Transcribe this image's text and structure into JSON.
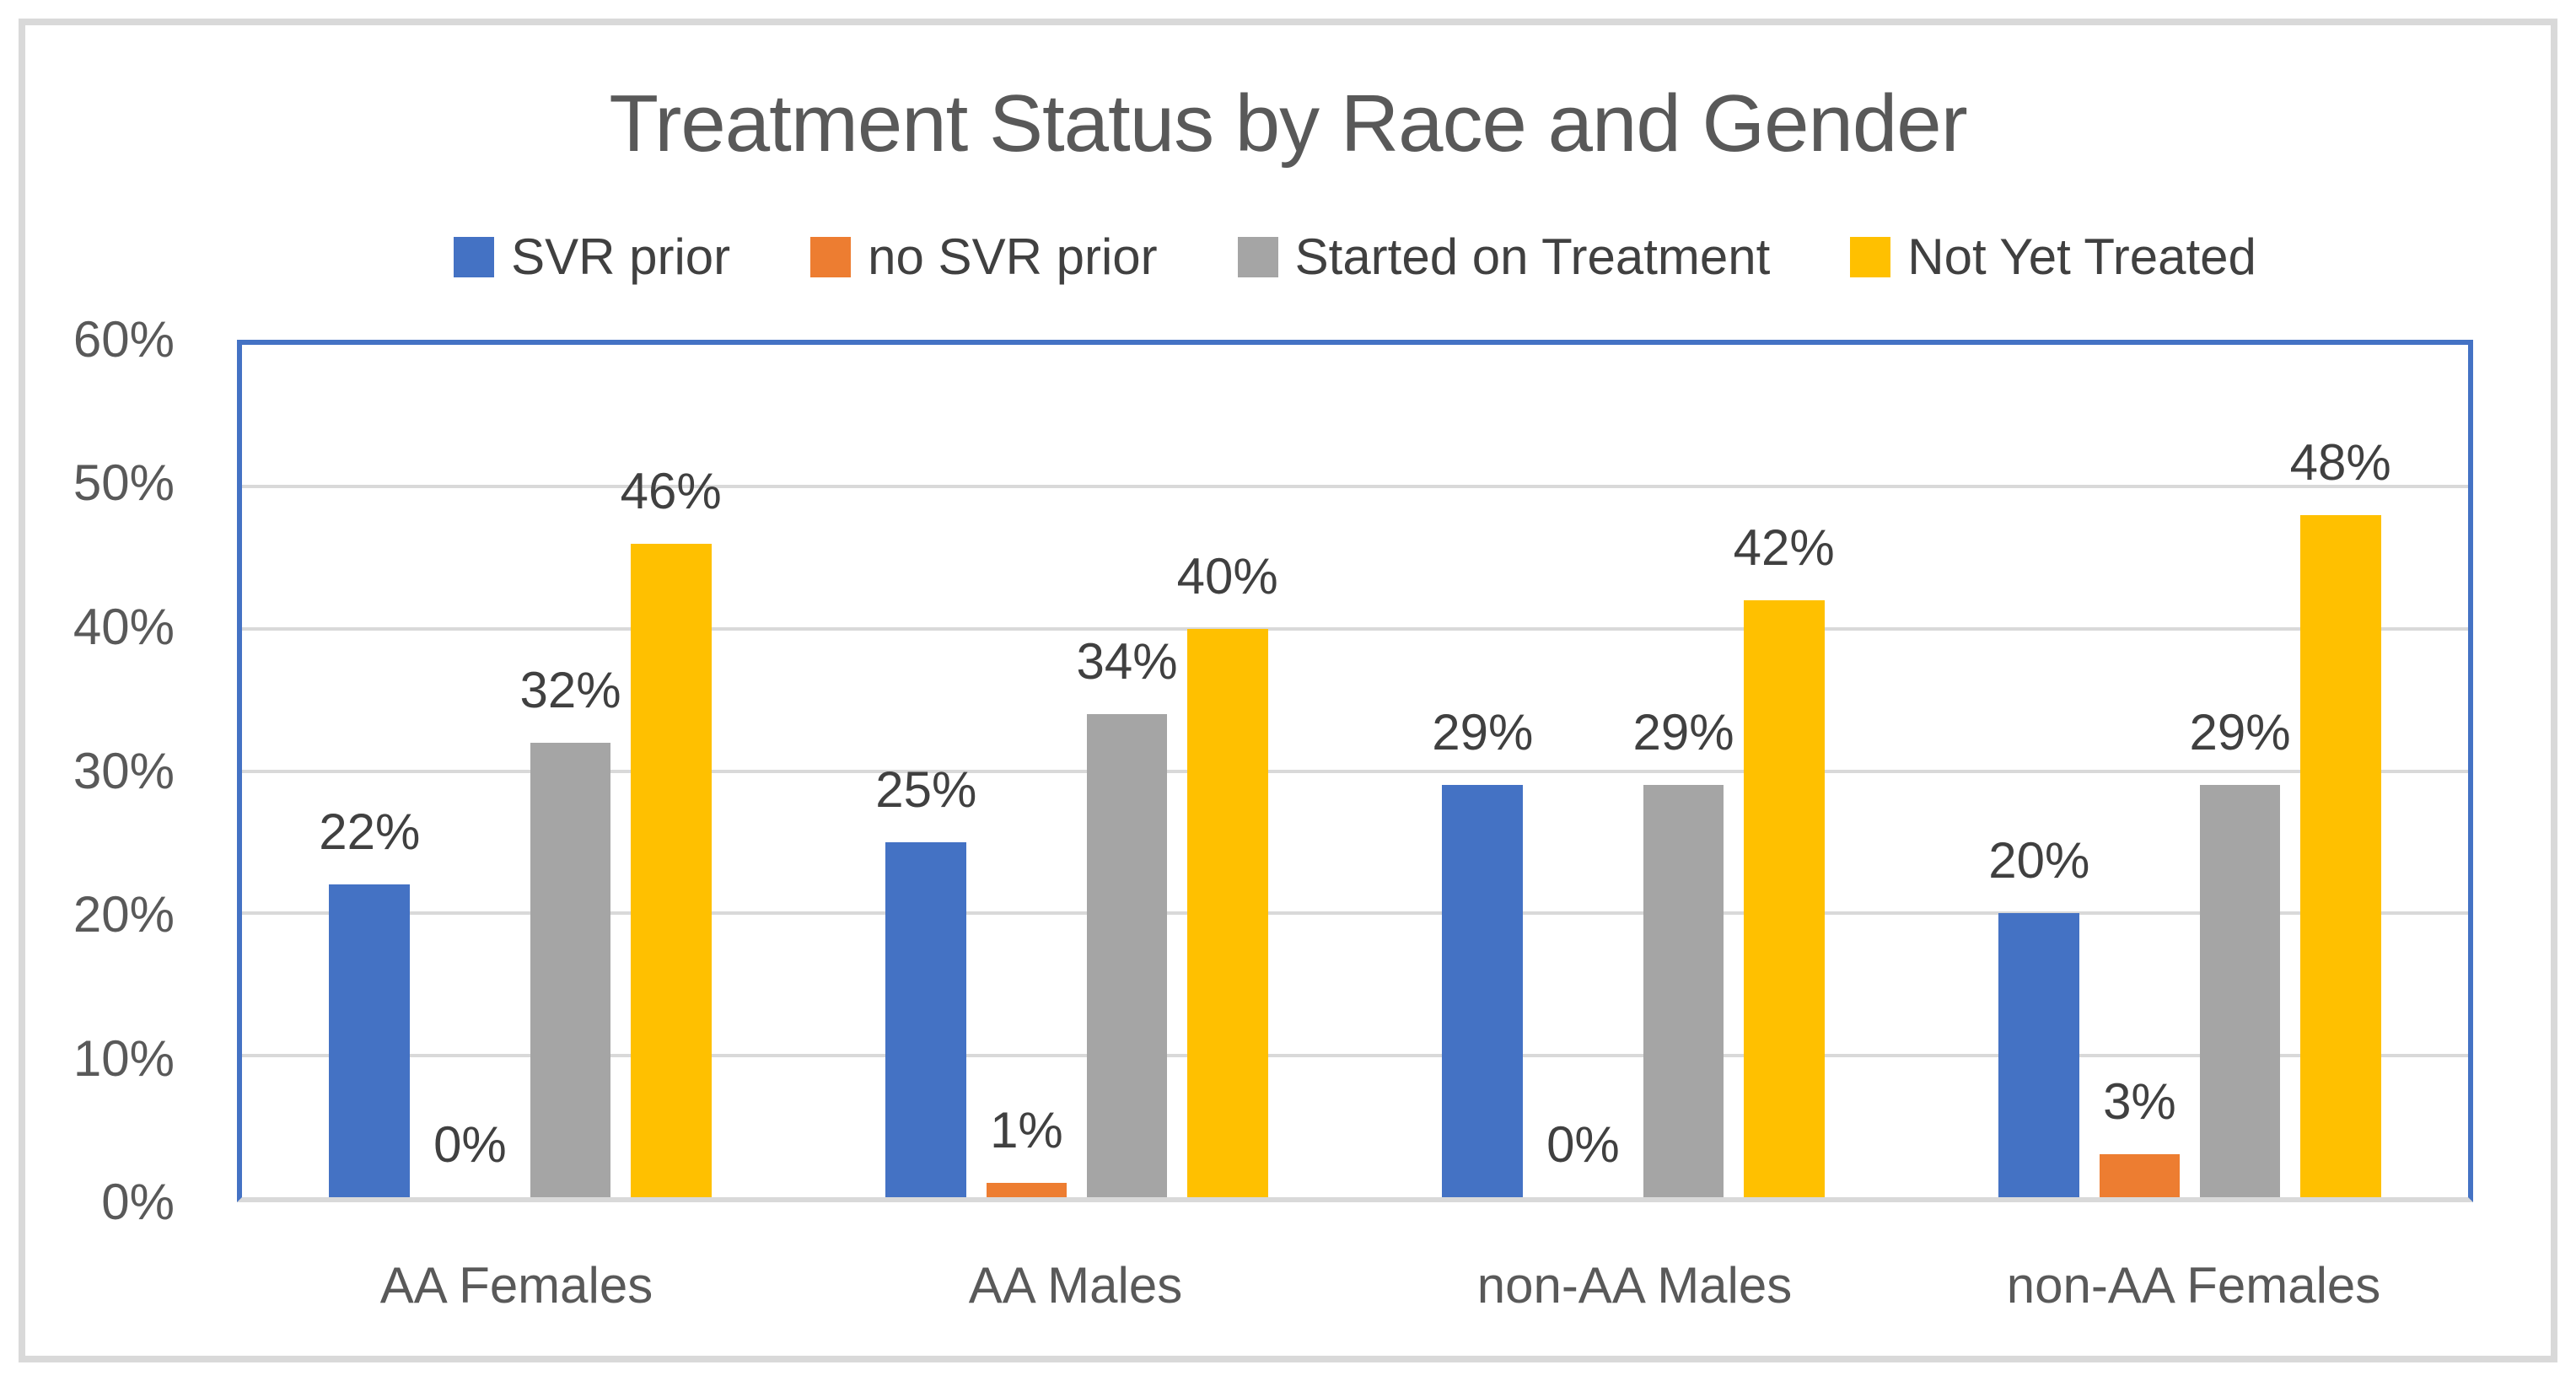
{
  "title": "Treatment Status by Race and Gender",
  "chart_data": {
    "type": "bar",
    "categories": [
      "AA Females",
      "AA Males",
      "non-AA Males",
      "non-AA Females"
    ],
    "series": [
      {
        "name": "SVR prior",
        "color": "#4472C4",
        "values": [
          22,
          25,
          29,
          20
        ]
      },
      {
        "name": "no SVR prior",
        "color": "#ED7D31",
        "values": [
          0,
          1,
          0,
          3
        ]
      },
      {
        "name": "Started on Treatment",
        "color": "#A5A5A5",
        "values": [
          32,
          34,
          29,
          29
        ]
      },
      {
        "name": "Not Yet Treated",
        "color": "#FFC000",
        "values": [
          46,
          40,
          42,
          48
        ]
      }
    ],
    "value_suffix": "%",
    "y_ticks": [
      "0%",
      "10%",
      "20%",
      "30%",
      "40%",
      "50%",
      "60%"
    ],
    "ylim": [
      0,
      60
    ],
    "xlabel": "",
    "ylabel": "",
    "grid": true,
    "legend_position": "top",
    "data_labels": "outside-end"
  },
  "colors": {
    "plot_border": "#4472C4",
    "gridline": "#D9D9D9",
    "axis_line": "#D9D9D9",
    "frame_border": "#D9D9D9",
    "title_text": "#595959",
    "axis_text": "#595959",
    "data_label_text": "#404040",
    "background": "#FFFFFF"
  }
}
